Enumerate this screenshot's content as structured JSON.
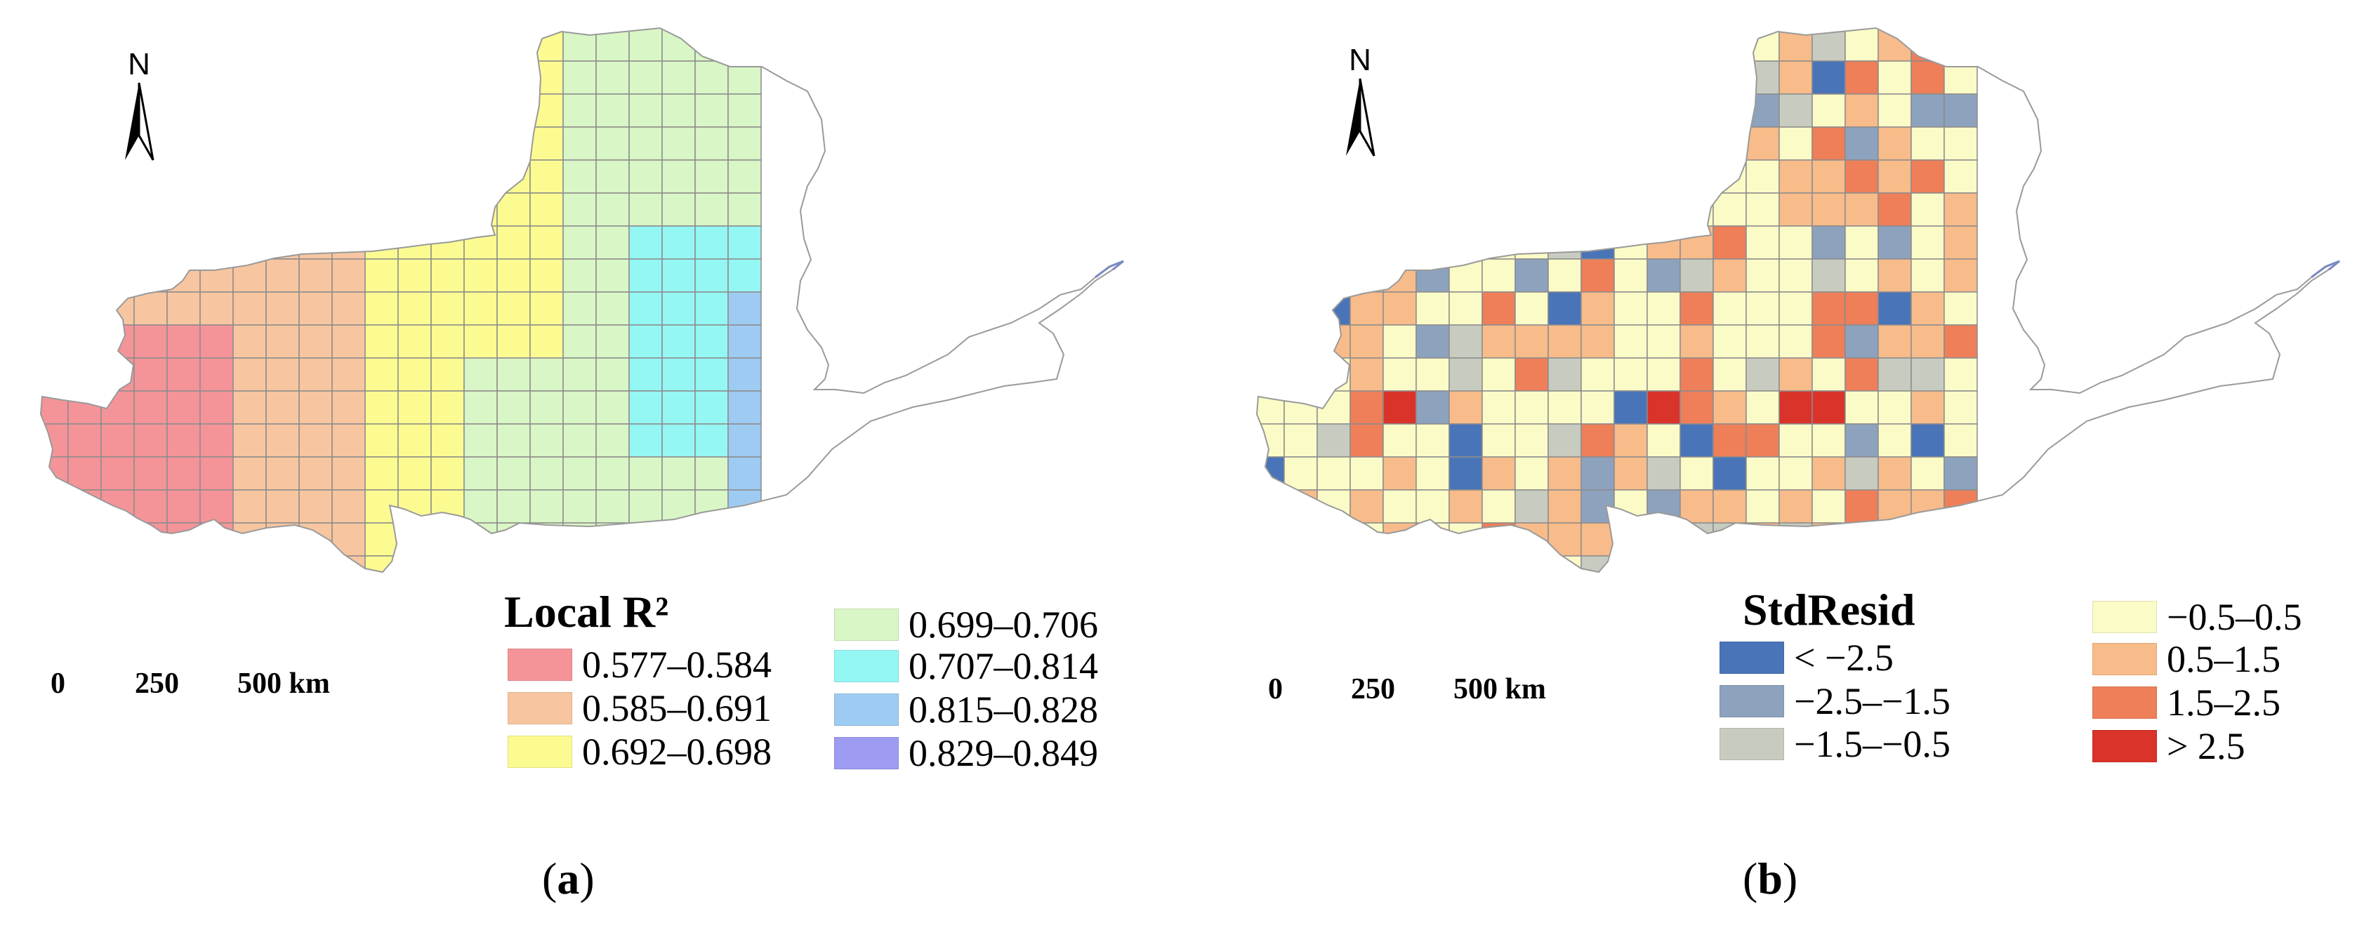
{
  "panels": [
    {
      "caption": "a",
      "north_label": "N",
      "scale": {
        "ticks": [
          "0",
          "250",
          "500 km"
        ]
      },
      "legend": {
        "title": "Local R²",
        "items": [
          {
            "label": "0.577–0.584",
            "color": "#f59498"
          },
          {
            "label": "0.585–0.691",
            "color": "#f7c6a0"
          },
          {
            "label": "0.692–0.698",
            "color": "#fbfb92"
          },
          {
            "label": "0.699–0.706",
            "color": "#d9f6c6"
          },
          {
            "label": "0.707–0.814",
            "color": "#95f7f4"
          },
          {
            "label": "0.815–0.828",
            "color": "#9ecbf2"
          },
          {
            "label": "0.829–0.849",
            "color": "#9d9bf2"
          }
        ]
      }
    },
    {
      "caption": "b",
      "north_label": "N",
      "scale": {
        "ticks": [
          "0",
          "250",
          "500 km"
        ]
      },
      "legend": {
        "title": "StdResid",
        "items": [
          {
            "label": "< −2.5",
            "color": "#4a74b8"
          },
          {
            "label": "−2.5–−1.5",
            "color": "#8da2bd"
          },
          {
            "label": "−1.5–−0.5",
            "color": "#c8ccc0"
          },
          {
            "label": "−0.5–0.5",
            "color": "#fbfbc7"
          },
          {
            "label": "0.5–1.5",
            "color": "#f8bb8a"
          },
          {
            "label": "1.5–2.5",
            "color": "#ee7f59"
          },
          {
            "label": "> 2.5",
            "color": "#d9332a"
          }
        ]
      }
    }
  ]
}
